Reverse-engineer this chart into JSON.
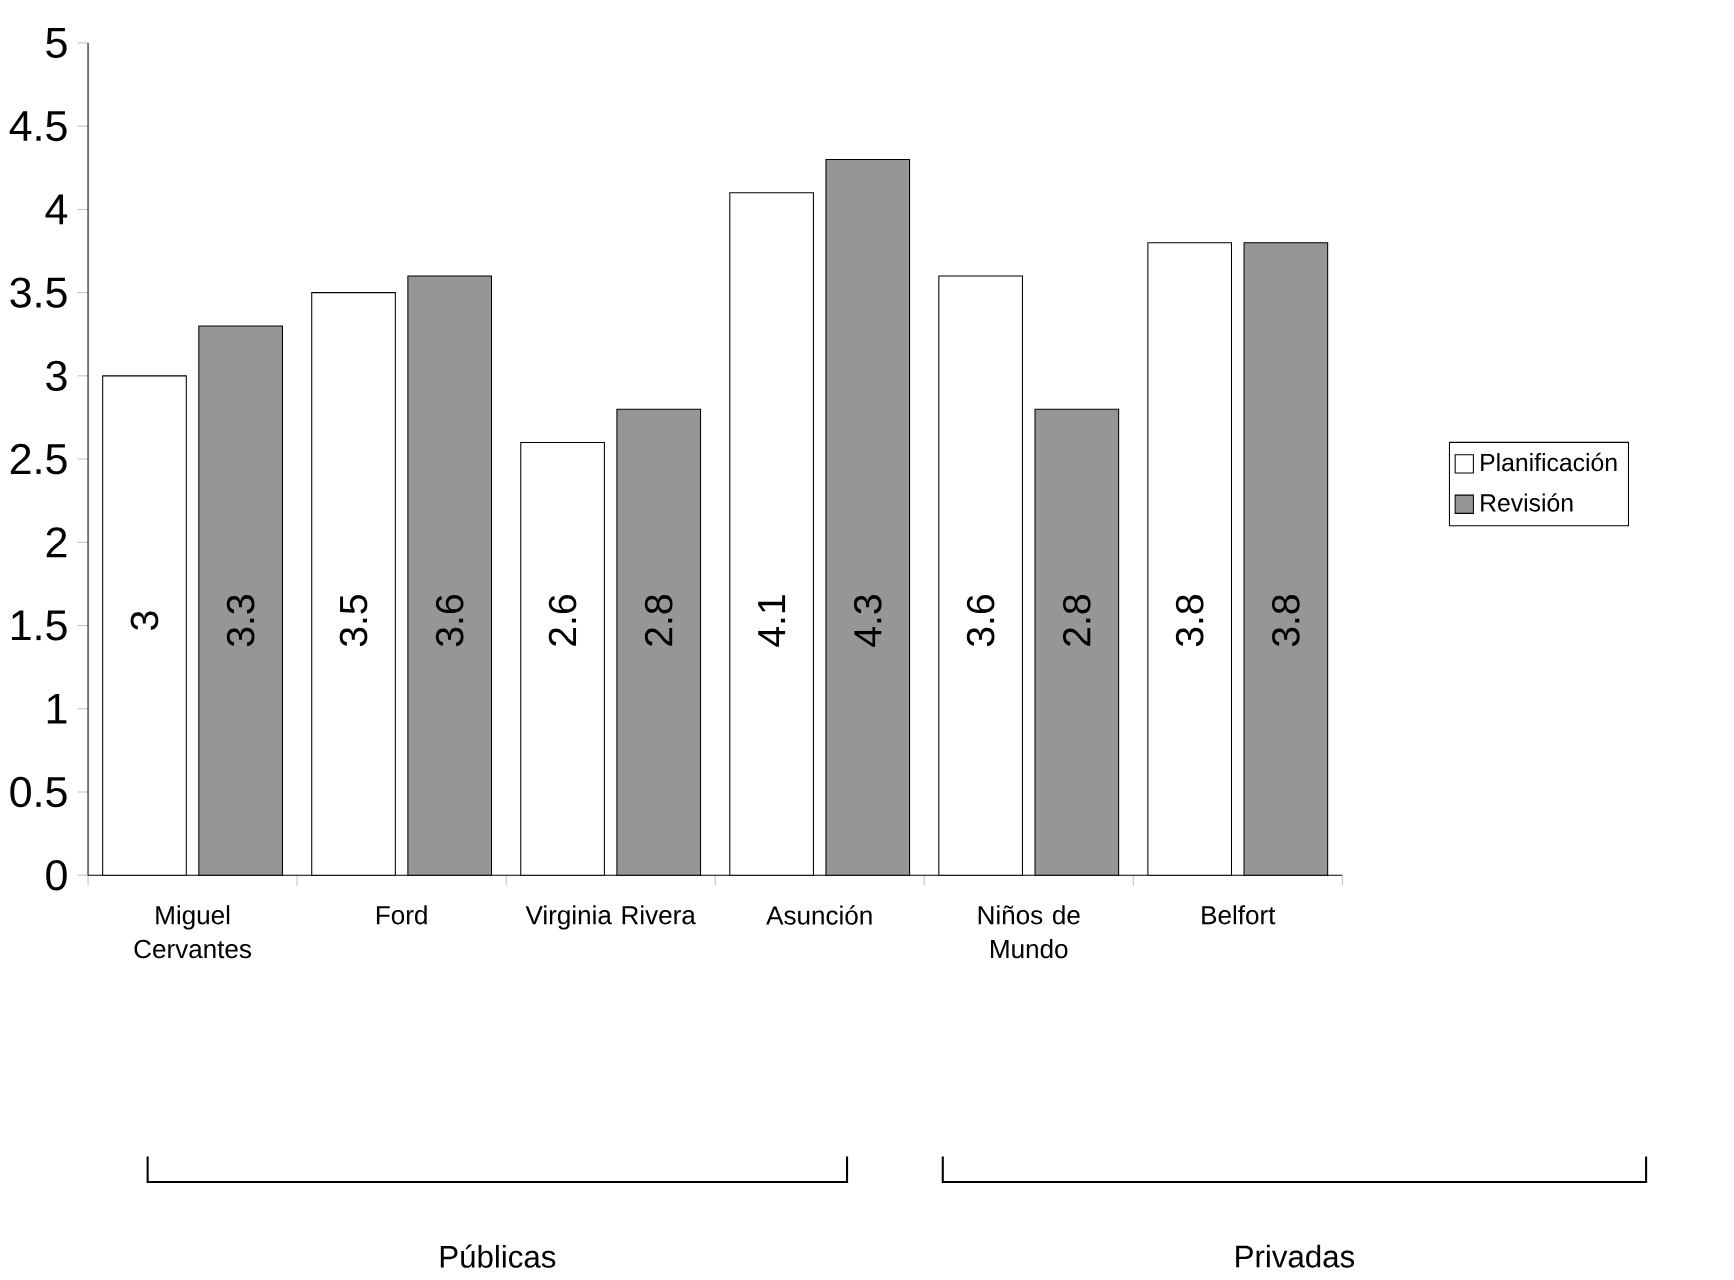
{
  "chart_data": {
    "type": "bar",
    "categories": [
      "Miguel Cervantes",
      "Ford",
      "Virginia Rivera",
      "Asunción",
      "Niños de Mundo",
      "Belfort"
    ],
    "series": [
      {
        "name": "Planificación",
        "color": "#ffffff",
        "values": [
          3,
          3.5,
          2.6,
          4.1,
          3.6,
          3.8
        ]
      },
      {
        "name": "Revisión",
        "color": "#969696",
        "values": [
          3.3,
          3.6,
          2.8,
          4.3,
          2.8,
          3.8
        ]
      }
    ],
    "ylim": [
      0,
      5
    ],
    "yticks": [
      0,
      0.5,
      1,
      1.5,
      2,
      2.5,
      3,
      3.5,
      4,
      4.5,
      5
    ],
    "grid": false,
    "legend": "right",
    "data_labels": true,
    "annotations": [
      "Públicas",
      "Privadas"
    ]
  }
}
